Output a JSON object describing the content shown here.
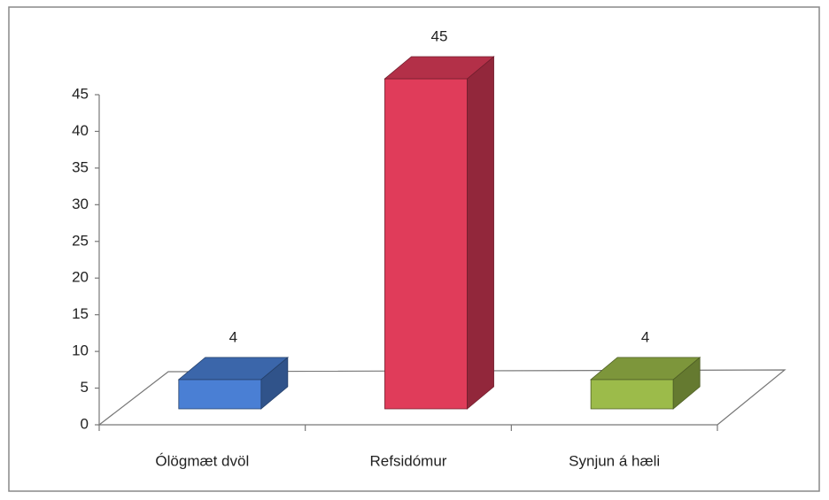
{
  "chart_data": {
    "type": "bar3d",
    "categories": [
      "Ólögmæt dvöl",
      "Refsidómur",
      "Synjun á hæli"
    ],
    "values": [
      4,
      45,
      4
    ],
    "colors": [
      "#4a7fd4",
      "#e03c5a",
      "#9cbb4a"
    ],
    "ylim": [
      0,
      45
    ],
    "yticks": [
      0,
      5,
      10,
      15,
      20,
      25,
      30,
      35,
      40,
      45
    ]
  }
}
